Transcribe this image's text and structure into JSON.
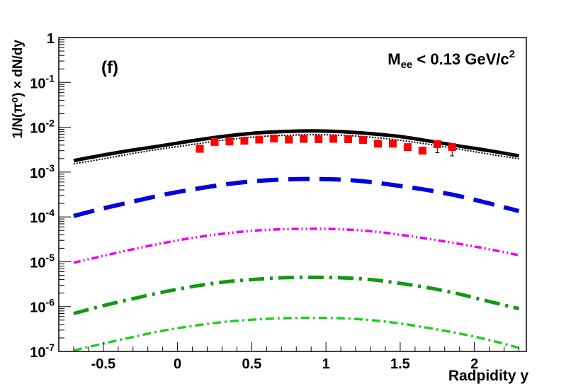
{
  "chart_data": {
    "type": "line",
    "panel_label": "(f)",
    "annotation": {
      "main": "M",
      "sub": "ee",
      "rest": " < 0.13 GeV/c",
      "sup": "2"
    },
    "xlabel": "Radpidity y",
    "ylabel": "1/N(π⁰) × dN/dy",
    "xlim": [
      -0.8,
      2.35
    ],
    "ylim": [
      1e-07,
      1
    ],
    "yscale": "log",
    "x_ticks": [
      -0.5,
      0,
      0.5,
      1,
      1.5,
      2
    ],
    "x_tick_labels": [
      "-0.5",
      "0",
      "0.5",
      "1",
      "1.5",
      "2"
    ],
    "y_tick_labels": [
      {
        "value": 1,
        "base": "1",
        "exp": ""
      },
      {
        "value": 0.1,
        "base": "10",
        "exp": "-1"
      },
      {
        "value": 0.01,
        "base": "10",
        "exp": "-2"
      },
      {
        "value": 0.001,
        "base": "10",
        "exp": "-3"
      },
      {
        "value": 0.0001,
        "base": "10",
        "exp": "-4"
      },
      {
        "value": 1e-05,
        "base": "10",
        "exp": "-5"
      },
      {
        "value": 1e-06,
        "base": "10",
        "exp": "-6"
      },
      {
        "value": 1e-07,
        "base": "10",
        "exp": "-7"
      }
    ],
    "curve_x": [
      -0.7,
      -0.5,
      -0.3,
      -0.1,
      0.1,
      0.3,
      0.5,
      0.7,
      0.9,
      1.1,
      1.3,
      1.5,
      1.7,
      1.9,
      2.1,
      2.3
    ],
    "series": [
      {
        "name": "total",
        "color": "#000000",
        "dash": "solid",
        "values": [
          0.0018,
          0.0024,
          0.0031,
          0.0039,
          0.005,
          0.0062,
          0.0073,
          0.008,
          0.0083,
          0.008,
          0.0072,
          0.0062,
          0.0049,
          0.0038,
          0.003,
          0.0023
        ]
      },
      {
        "name": "total-dotted",
        "color": "#000000",
        "dash": "dotted",
        "values": [
          0.0017,
          0.0022,
          0.0029,
          0.0037,
          0.0046,
          0.0057,
          0.0067,
          0.0073,
          0.0076,
          0.0074,
          0.0067,
          0.0057,
          0.0046,
          0.0036,
          0.0028,
          0.0022
        ]
      },
      {
        "name": "blue-dashed",
        "color": "#0000dd",
        "dash": "dashed",
        "values": [
          0.000105,
          0.000155,
          0.00022,
          0.00031,
          0.00041,
          0.00052,
          0.00062,
          0.00068,
          0.0007,
          0.00068,
          0.0006,
          0.00049,
          0.00039,
          0.00029,
          0.0002,
          0.000135
        ]
      },
      {
        "name": "magenta-dotted",
        "color": "#ee00ee",
        "dash": "dashdotdot",
        "values": [
          9.5e-06,
          1.35e-05,
          1.9e-05,
          2.6e-05,
          3.4e-05,
          4.2e-05,
          4.9e-05,
          5.3e-05,
          5.45e-05,
          5.3e-05,
          4.8e-05,
          4e-05,
          3.2e-05,
          2.5e-05,
          1.9e-05,
          1.4e-05
        ]
      },
      {
        "name": "green-dashdot",
        "color": "#119911",
        "dash": "longdashdot",
        "values": [
          7e-07,
          1.05e-06,
          1.5e-06,
          2.1e-06,
          2.8e-06,
          3.5e-06,
          4e-06,
          4.4e-06,
          4.5e-06,
          4.4e-06,
          4e-06,
          3.3e-06,
          2.6e-06,
          1.9e-06,
          1.3e-06,
          9e-07
        ]
      },
      {
        "name": "lightgreen-dashdot",
        "color": "#22cc22",
        "dash": "dashdot",
        "values": [
          1.05e-07,
          1.5e-07,
          2.1e-07,
          2.9e-07,
          3.7e-07,
          4.5e-07,
          5.1e-07,
          5.5e-07,
          5.6e-07,
          5.5e-07,
          5e-07,
          4.2e-07,
          3.3e-07,
          2.5e-07,
          1.8e-07,
          1.2e-07
        ]
      }
    ],
    "data_points": {
      "name": "measured",
      "color": "#ff0000",
      "x": [
        0.15,
        0.25,
        0.35,
        0.45,
        0.55,
        0.65,
        0.75,
        0.85,
        0.95,
        1.05,
        1.15,
        1.25,
        1.35,
        1.45,
        1.55,
        1.65,
        1.75,
        1.85
      ],
      "y": [
        0.0033,
        0.0047,
        0.0048,
        0.005,
        0.0053,
        0.0056,
        0.0053,
        0.0055,
        0.0054,
        0.0055,
        0.0054,
        0.0052,
        0.0043,
        0.0043,
        0.0036,
        0.003,
        0.0042,
        0.0036
      ],
      "err_low": [
        0,
        0,
        0,
        0,
        0,
        0,
        0,
        0,
        0,
        0,
        0,
        0,
        0,
        0,
        0,
        0,
        0.0015,
        0.0013
      ]
    }
  }
}
